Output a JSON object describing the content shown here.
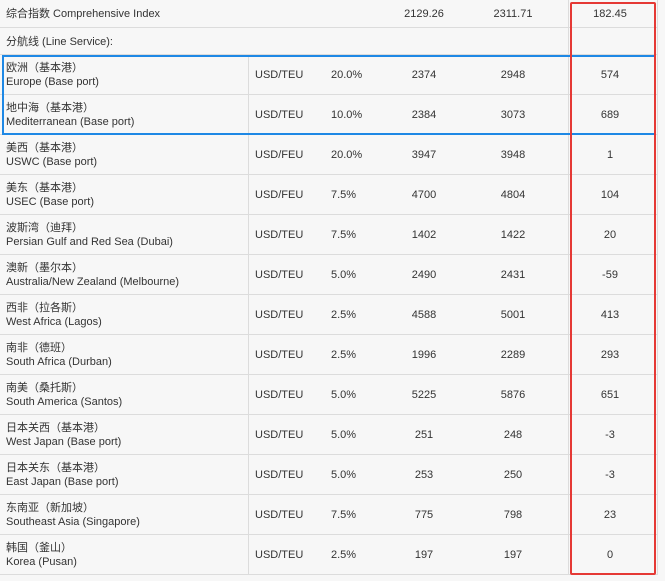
{
  "summary": {
    "label": "综合指数 Comprehensive Index",
    "previous": "2129.26",
    "current": "2311.71",
    "change": "182.45"
  },
  "section_label": "分航线 (Line Service):",
  "rows": [
    {
      "name_cn": "欧洲（基本港）",
      "name_en": "Europe (Base port)",
      "unit": "USD/TEU",
      "weight": "20.0%",
      "previous": "2374",
      "current": "2948",
      "change": "574"
    },
    {
      "name_cn": "地中海（基本港）",
      "name_en": "Mediterranean (Base port)",
      "unit": "USD/TEU",
      "weight": "10.0%",
      "previous": "2384",
      "current": "3073",
      "change": "689"
    },
    {
      "name_cn": "美西（基本港）",
      "name_en": "USWC (Base port)",
      "unit": "USD/FEU",
      "weight": "20.0%",
      "previous": "3947",
      "current": "3948",
      "change": "1"
    },
    {
      "name_cn": "美东（基本港）",
      "name_en": "USEC (Base port)",
      "unit": "USD/FEU",
      "weight": "7.5%",
      "previous": "4700",
      "current": "4804",
      "change": "104"
    },
    {
      "name_cn": "波斯湾（迪拜）",
      "name_en": "Persian Gulf and Red Sea (Dubai)",
      "unit": "USD/TEU",
      "weight": "7.5%",
      "previous": "1402",
      "current": "1422",
      "change": "20"
    },
    {
      "name_cn": "澳新（墨尔本）",
      "name_en": "Australia/New Zealand (Melbourne)",
      "unit": "USD/TEU",
      "weight": "5.0%",
      "previous": "2490",
      "current": "2431",
      "change": "-59"
    },
    {
      "name_cn": "西非（拉各斯）",
      "name_en": "West Africa (Lagos)",
      "unit": "USD/TEU",
      "weight": "2.5%",
      "previous": "4588",
      "current": "5001",
      "change": "413"
    },
    {
      "name_cn": "南非（德班）",
      "name_en": "South Africa (Durban)",
      "unit": "USD/TEU",
      "weight": "2.5%",
      "previous": "1996",
      "current": "2289",
      "change": "293"
    },
    {
      "name_cn": "南美（桑托斯）",
      "name_en": "South America (Santos)",
      "unit": "USD/TEU",
      "weight": "5.0%",
      "previous": "5225",
      "current": "5876",
      "change": "651"
    },
    {
      "name_cn": "日本关西（基本港）",
      "name_en": "West Japan (Base port)",
      "unit": "USD/TEU",
      "weight": "5.0%",
      "previous": "251",
      "current": "248",
      "change": "-3"
    },
    {
      "name_cn": "日本关东（基本港）",
      "name_en": "East Japan (Base port)",
      "unit": "USD/TEU",
      "weight": "5.0%",
      "previous": "253",
      "current": "250",
      "change": "-3"
    },
    {
      "name_cn": "东南亚（新加坡）",
      "name_en": "Southeast Asia (Singapore)",
      "unit": "USD/TEU",
      "weight": "7.5%",
      "previous": "775",
      "current": "798",
      "change": "23"
    },
    {
      "name_cn": "韩国（釜山）",
      "name_en": "Korea (Pusan)",
      "unit": "USD/TEU",
      "weight": "2.5%",
      "previous": "197",
      "current": "197",
      "change": "0"
    }
  ]
}
